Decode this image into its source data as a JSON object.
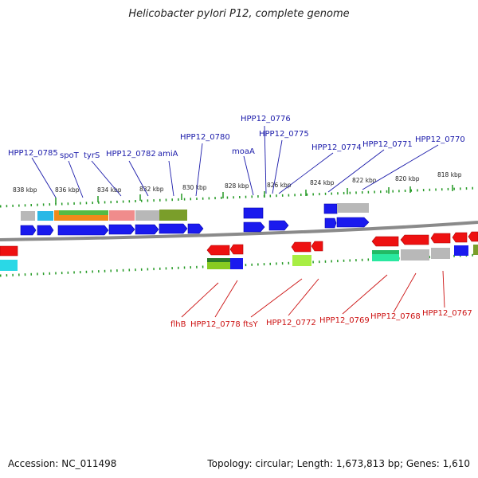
{
  "title": "Helicobacter pylori P12, complete genome",
  "footer": {
    "accession": "Accession: NC_011498",
    "summary": "Topology: circular; Length: 1,673,813 bp; Genes: 1,610"
  },
  "colors": {
    "forward_gene": "#1a1aee",
    "reverse_gene": "#ee1111",
    "forward_label": "#1a1aaa",
    "reverse_label": "#cc1111",
    "backbone": "#8a8a8a",
    "ticks": "#229922"
  },
  "scale": {
    "ticks": [
      "838 kbp",
      "836 kbp",
      "834 kbp",
      "832 kbp",
      "830 kbp",
      "828 kbp",
      "826 kbp",
      "824 kbp",
      "822 kbp",
      "820 kbp",
      "818 kbp"
    ]
  },
  "forward_labels": [
    "HPP12_0785",
    "spoT",
    "tyrS",
    "HPP12_0782",
    "amiA",
    "HPP12_0780",
    "moaA",
    "HPP12_0776",
    "HPP12_0775",
    "HPP12_0774",
    "HPP12_0771",
    "HPP12_0770"
  ],
  "reverse_labels": [
    "flhB",
    "HPP12_0778",
    "ftsY",
    "HPP12_0772",
    "HPP12_0769",
    "HPP12_0768",
    "HPP12_0767"
  ]
}
